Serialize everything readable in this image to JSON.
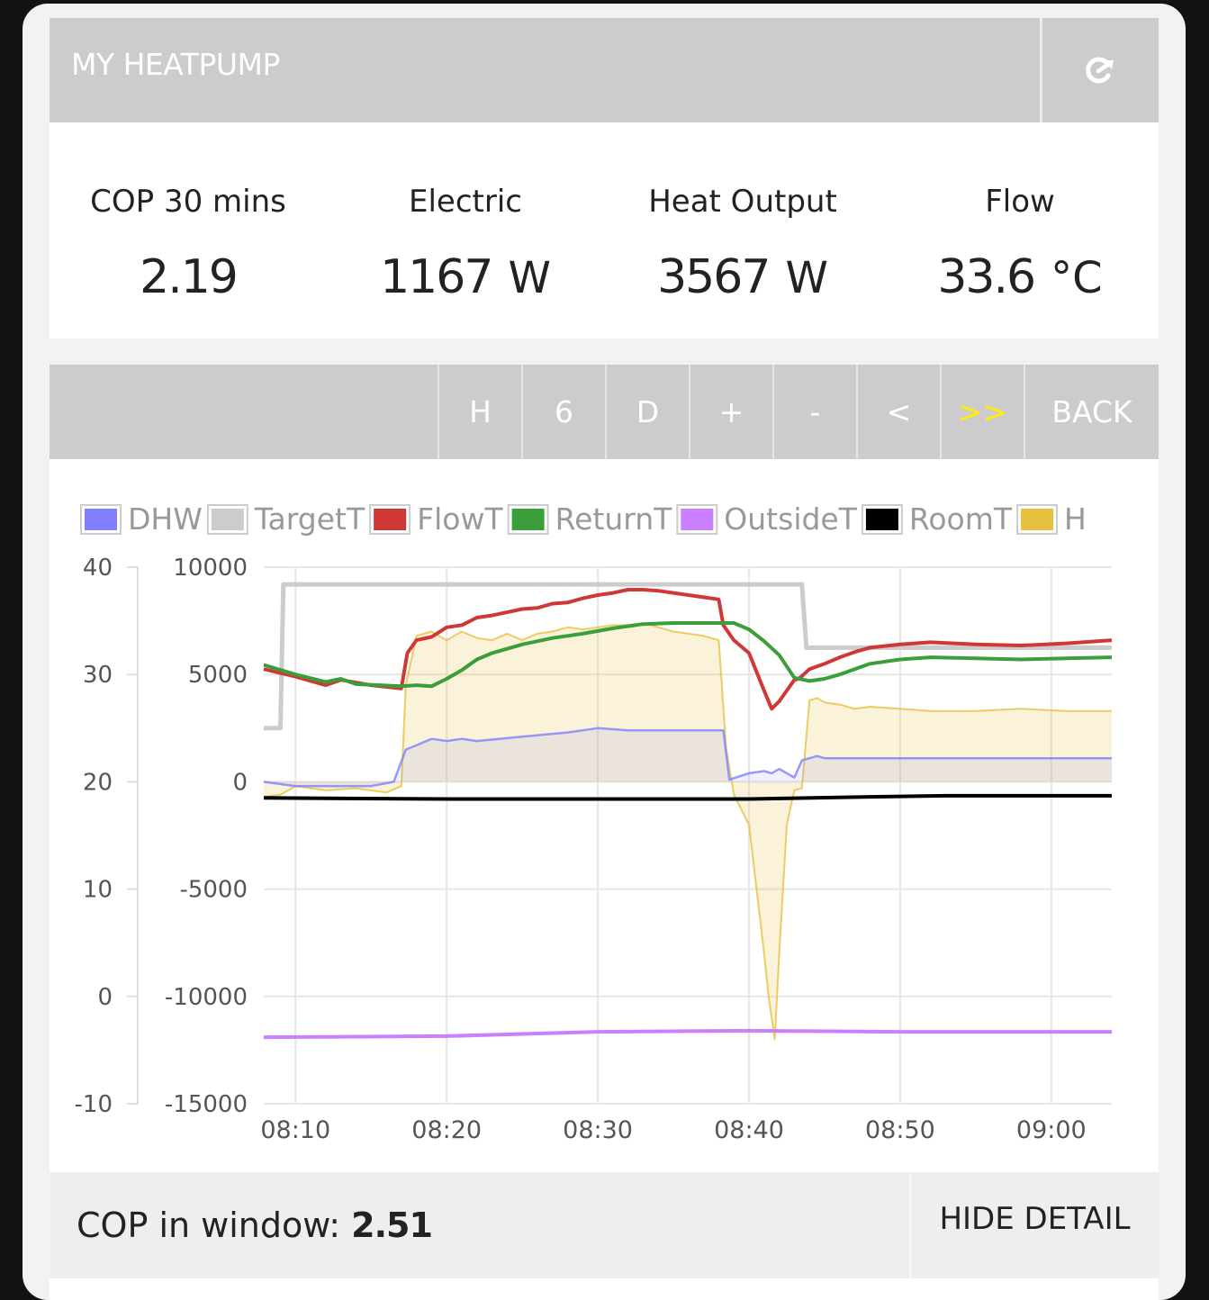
{
  "header": {
    "title": "MY HEATPUMP",
    "share_icon": "share-icon"
  },
  "stats": [
    {
      "label": "COP 30 mins",
      "value": "2.19",
      "unit": ""
    },
    {
      "label": "Electric",
      "value": "1167",
      "unit": "W"
    },
    {
      "label": "Heat Output",
      "value": "3567",
      "unit": "W"
    },
    {
      "label": "Flow",
      "value": "33.6",
      "unit": "°C"
    }
  ],
  "toolbar": {
    "buttons": [
      "H",
      "6",
      "D",
      "+",
      "-",
      "<",
      ">>",
      "BACK"
    ],
    "active_button": ">>",
    "active_color": "#ffee00"
  },
  "chart_data": {
    "type": "line",
    "legend": [
      {
        "name": "DHW",
        "color": "#8080ff"
      },
      {
        "name": "TargetT",
        "color": "#cccccc"
      },
      {
        "name": "FlowT",
        "color": "#d03838"
      },
      {
        "name": "ReturnT",
        "color": "#3a9e3a"
      },
      {
        "name": "OutsideT",
        "color": "#c880ff"
      },
      {
        "name": "RoomT",
        "color": "#000000"
      },
      {
        "name": "H",
        "color": "#e8c040"
      }
    ],
    "x_ticks": [
      "08:10",
      "08:20",
      "08:30",
      "08:40",
      "08:50",
      "09:00"
    ],
    "x_range_min": [
      7.9,
      64
    ],
    "y_left_ticks": [
      40,
      30,
      20,
      10,
      0,
      -10
    ],
    "y_left_range": [
      -10,
      40
    ],
    "y_right_ticks": [
      10000,
      5000,
      0,
      -5000,
      -10000,
      -15000
    ],
    "y_right_range": [
      -15000,
      10000
    ],
    "series": [
      {
        "name": "TargetT",
        "axis": "left",
        "x": [
          7.9,
          9,
          9.2,
          10.5,
          20,
          30,
          40,
          43.5,
          43.8,
          46,
          55,
          64
        ],
        "y": [
          25,
          25,
          38.4,
          38.4,
          38.4,
          38.4,
          38.4,
          38.4,
          32.5,
          32.5,
          32.5,
          32.5
        ]
      },
      {
        "name": "FlowT",
        "axis": "left",
        "x": [
          7.9,
          10,
          12,
          13,
          15,
          17,
          17.4,
          18,
          19,
          20,
          21,
          22,
          23,
          24,
          25,
          26,
          27,
          28,
          29,
          30,
          31,
          32,
          33,
          34,
          35,
          36,
          37,
          38,
          38.3,
          39,
          40,
          41,
          41.5,
          42,
          43,
          43.3,
          44,
          45,
          46,
          47,
          48,
          50,
          52,
          55,
          58,
          61,
          64
        ],
        "y": [
          30.5,
          29.8,
          29,
          29.5,
          29,
          28.7,
          32,
          33.2,
          33.5,
          34.4,
          34.6,
          35.3,
          35.5,
          35.8,
          36.1,
          36.2,
          36.6,
          36.7,
          37.1,
          37.4,
          37.6,
          37.9,
          37.9,
          37.8,
          37.6,
          37.4,
          37.2,
          37,
          34.6,
          33.2,
          32,
          28.5,
          26.8,
          27.5,
          29.5,
          29.6,
          30.5,
          31,
          31.6,
          32.1,
          32.5,
          32.8,
          33,
          32.8,
          32.7,
          32.9,
          33.2
        ]
      },
      {
        "name": "ReturnT",
        "axis": "left",
        "x": [
          7.9,
          10,
          12,
          13,
          14,
          17,
          18,
          19,
          20,
          21,
          22,
          23,
          25,
          27,
          29,
          31,
          33,
          35,
          37,
          39,
          40,
          41,
          42,
          43,
          44,
          45,
          46,
          47,
          48,
          50,
          52,
          55,
          58,
          61,
          64
        ],
        "y": [
          30.9,
          30,
          29.3,
          29.6,
          29.1,
          28.9,
          29,
          28.9,
          29.6,
          30.4,
          31.4,
          32,
          32.8,
          33.4,
          33.8,
          34.3,
          34.7,
          34.8,
          34.8,
          34.8,
          34.2,
          33.1,
          31.8,
          29.7,
          29.4,
          29.6,
          30,
          30.5,
          31,
          31.4,
          31.6,
          31.5,
          31.4,
          31.5,
          31.6
        ]
      },
      {
        "name": "RoomT",
        "axis": "left",
        "x": [
          7.9,
          20,
          40,
          48,
          53,
          64
        ],
        "y": [
          18.5,
          18.4,
          18.4,
          18.6,
          18.7,
          18.7
        ]
      },
      {
        "name": "OutsideT",
        "axis": "left",
        "x": [
          7.9,
          20,
          30,
          40,
          50,
          64
        ],
        "y": [
          -3.8,
          -3.7,
          -3.3,
          -3.2,
          -3.3,
          -3.3
        ]
      },
      {
        "name": "DHW",
        "axis": "right",
        "x": [
          7.9,
          10,
          15,
          16.5,
          17.3,
          18,
          19,
          20,
          21,
          22,
          25,
          28,
          30,
          32,
          35,
          38.3,
          38.7,
          40,
          41,
          41.5,
          42,
          43,
          43.5,
          44.5,
          45,
          50,
          55,
          64
        ],
        "y": [
          0,
          -200,
          -200,
          0,
          1500,
          1700,
          2000,
          1900,
          2000,
          1900,
          2100,
          2300,
          2500,
          2400,
          2400,
          2400,
          100,
          400,
          500,
          400,
          600,
          200,
          1000,
          1200,
          1100,
          1100,
          1100,
          1100
        ]
      },
      {
        "name": "H",
        "axis": "right",
        "x": [
          7.9,
          9,
          10,
          12,
          14,
          16,
          17,
          17.3,
          18,
          19,
          20,
          21,
          22,
          23,
          24,
          25,
          26,
          27,
          28,
          29,
          30,
          31,
          32,
          33,
          34,
          35,
          36,
          37,
          38,
          38.5,
          39,
          40,
          40.5,
          41,
          41.3,
          41.7,
          42,
          42.5,
          43,
          43.5,
          44,
          44.5,
          45,
          46,
          47,
          48,
          50,
          52,
          55,
          58,
          61,
          64
        ],
        "y": [
          -700,
          -600,
          -200,
          -400,
          -300,
          -500,
          -200,
          4500,
          6800,
          7000,
          6600,
          7000,
          6700,
          6600,
          6900,
          6600,
          6900,
          7000,
          7200,
          7100,
          7200,
          7300,
          7300,
          7400,
          7200,
          7000,
          6900,
          6800,
          6600,
          1500,
          -600,
          -2000,
          -5000,
          -8000,
          -10000,
          -12000,
          -8000,
          -2000,
          -400,
          -300,
          3800,
          3900,
          3700,
          3600,
          3400,
          3500,
          3400,
          3300,
          3300,
          3400,
          3300,
          3300
        ]
      }
    ]
  },
  "footer": {
    "cop_label": "COP in window:",
    "cop_value": "2.51",
    "hide_label": "HIDE DETAIL"
  }
}
